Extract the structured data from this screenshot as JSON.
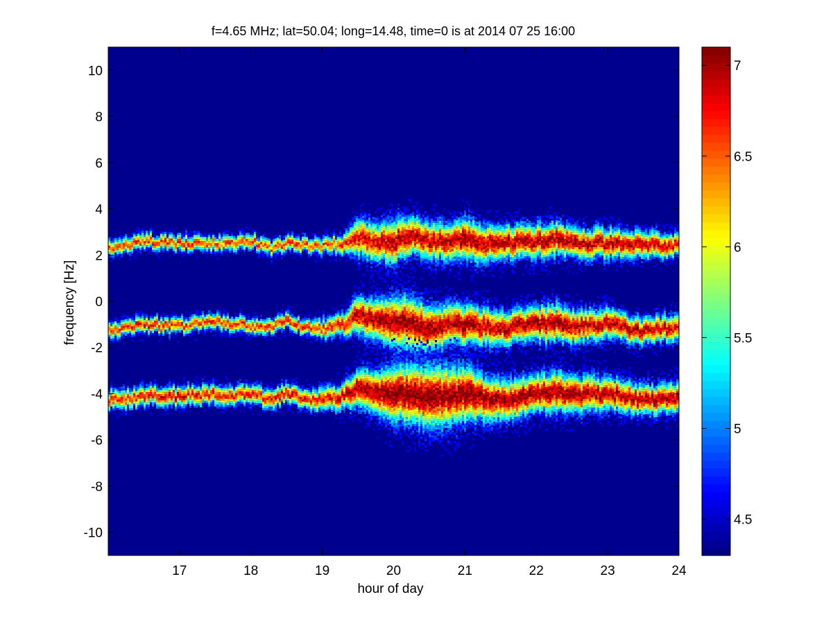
{
  "chart_data": {
    "type": "heatmap",
    "title": "f=4.65 MHz;  lat=50.04; long=14.48, time=0 is at 2014 07 25 16:00",
    "xlabel": "hour of day",
    "ylabel": "frequency [Hz]",
    "xlim": [
      16,
      24
    ],
    "ylim": [
      -11,
      11
    ],
    "xticks": [
      17,
      18,
      19,
      20,
      21,
      22,
      23,
      24
    ],
    "yticks": [
      -10,
      -8,
      -6,
      -4,
      -2,
      0,
      2,
      4,
      6,
      8,
      10
    ],
    "colormap": "jet",
    "background_color": "#00008f",
    "colorbar": {
      "ticks": [
        "4.5",
        "5",
        "5.5",
        "6",
        "6.5",
        "7"
      ],
      "tick_values": [
        4.5,
        5,
        5.5,
        6,
        6.5,
        7
      ],
      "clim": [
        4.3,
        7.1
      ]
    },
    "bands": [
      {
        "name": "upper",
        "x": [
          16.0,
          16.5,
          17.0,
          17.5,
          18.0,
          18.3,
          18.5,
          18.8,
          19.0,
          19.3,
          19.5,
          19.8,
          20.0,
          20.3,
          20.5,
          20.8,
          21.0,
          21.3,
          21.5,
          22.0,
          22.3,
          22.5,
          23.0,
          23.5,
          24.0
        ],
        "center": [
          2.3,
          2.6,
          2.5,
          2.5,
          2.6,
          2.3,
          2.5,
          2.4,
          2.4,
          2.5,
          2.8,
          2.5,
          2.6,
          2.8,
          2.6,
          2.6,
          2.7,
          2.5,
          2.5,
          2.6,
          2.7,
          2.5,
          2.5,
          2.5,
          2.4
        ],
        "halfwidth": [
          0.2,
          0.2,
          0.2,
          0.2,
          0.2,
          0.2,
          0.2,
          0.2,
          0.2,
          0.25,
          0.5,
          0.5,
          0.6,
          0.5,
          0.5,
          0.5,
          0.55,
          0.5,
          0.45,
          0.45,
          0.45,
          0.4,
          0.4,
          0.35,
          0.3
        ],
        "intensity": [
          6.5,
          6.6,
          6.6,
          6.5,
          6.5,
          6.5,
          6.6,
          6.5,
          6.5,
          6.6,
          6.8,
          6.8,
          6.9,
          6.9,
          6.9,
          6.9,
          7.0,
          6.9,
          6.9,
          6.9,
          7.0,
          6.9,
          6.9,
          6.9,
          6.8
        ]
      },
      {
        "name": "middle",
        "x": [
          16.0,
          16.5,
          17.0,
          17.5,
          18.0,
          18.3,
          18.5,
          18.8,
          19.0,
          19.3,
          19.5,
          19.8,
          20.0,
          20.3,
          20.5,
          20.8,
          21.0,
          21.3,
          21.5,
          22.0,
          22.3,
          22.5,
          23.0,
          23.5,
          24.0
        ],
        "center": [
          -1.3,
          -1.0,
          -1.1,
          -0.9,
          -1.0,
          -1.1,
          -0.8,
          -1.2,
          -1.2,
          -1.0,
          -0.6,
          -0.9,
          -0.9,
          -1.0,
          -1.2,
          -1.0,
          -1.0,
          -1.1,
          -1.2,
          -1.0,
          -0.9,
          -1.1,
          -1.0,
          -1.3,
          -1.1
        ],
        "halfwidth": [
          0.2,
          0.2,
          0.2,
          0.2,
          0.2,
          0.2,
          0.2,
          0.2,
          0.25,
          0.3,
          0.5,
          0.55,
          0.7,
          0.7,
          0.6,
          0.55,
          0.55,
          0.5,
          0.45,
          0.45,
          0.5,
          0.45,
          0.4,
          0.35,
          0.35
        ],
        "intensity": [
          6.6,
          6.7,
          6.6,
          6.6,
          6.6,
          6.6,
          6.7,
          6.6,
          6.6,
          6.7,
          6.9,
          7.0,
          7.0,
          7.0,
          7.0,
          6.9,
          7.0,
          6.9,
          6.9,
          7.0,
          7.0,
          6.9,
          6.9,
          6.9,
          6.8
        ]
      },
      {
        "name": "lower",
        "x": [
          16.0,
          16.5,
          17.0,
          17.5,
          18.0,
          18.3,
          18.5,
          18.8,
          19.0,
          19.3,
          19.5,
          19.8,
          20.0,
          20.3,
          20.5,
          20.8,
          21.0,
          21.3,
          21.5,
          22.0,
          22.3,
          22.5,
          23.0,
          23.5,
          24.0
        ],
        "center": [
          -4.3,
          -4.1,
          -4.1,
          -4.0,
          -4.1,
          -4.2,
          -4.0,
          -4.2,
          -4.3,
          -4.1,
          -3.7,
          -4.0,
          -4.0,
          -4.0,
          -4.2,
          -4.1,
          -4.0,
          -4.2,
          -4.3,
          -4.0,
          -3.9,
          -4.1,
          -4.0,
          -4.3,
          -4.1
        ],
        "halfwidth": [
          0.25,
          0.25,
          0.25,
          0.25,
          0.25,
          0.25,
          0.25,
          0.25,
          0.3,
          0.35,
          0.5,
          0.6,
          0.75,
          0.8,
          0.85,
          0.8,
          0.75,
          0.6,
          0.55,
          0.5,
          0.55,
          0.5,
          0.45,
          0.4,
          0.4
        ],
        "intensity": [
          6.6,
          6.7,
          6.8,
          6.7,
          6.7,
          6.7,
          6.8,
          6.7,
          6.7,
          6.8,
          7.0,
          7.0,
          7.1,
          7.1,
          7.1,
          7.0,
          7.1,
          7.0,
          7.0,
          7.0,
          7.0,
          7.0,
          6.9,
          6.9,
          6.9
        ]
      }
    ]
  }
}
